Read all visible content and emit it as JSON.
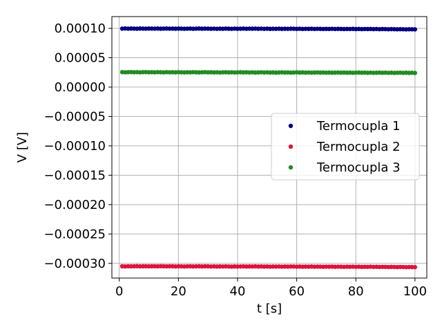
{
  "chart_data": {
    "type": "scatter",
    "xlabel": "t [s]",
    "ylabel": "V [V]",
    "xlim": [
      -2.5,
      104
    ],
    "ylim": [
      -0.000325,
      0.00012
    ],
    "xticks": [
      0,
      20,
      40,
      60,
      80,
      100
    ],
    "xtick_labels": [
      "0",
      "20",
      "40",
      "60",
      "80",
      "100"
    ],
    "yticks": [
      0.0001,
      5e-05,
      0.0,
      -5e-05,
      -0.0001,
      -0.00015,
      -0.0002,
      -0.00025,
      -0.0003
    ],
    "ytick_labels": [
      "0.00010",
      "0.00005",
      "0.00000",
      "−0.00005",
      "−0.00010",
      "−0.00015",
      "−0.00020",
      "−0.00025",
      "−0.00030"
    ],
    "grid": true,
    "legend_position": "center-right",
    "x": [
      1,
      2,
      3,
      4,
      5,
      6,
      7,
      8,
      9,
      10,
      11,
      12,
      13,
      14,
      15,
      16,
      17,
      18,
      19,
      20,
      21,
      22,
      23,
      24,
      25,
      26,
      27,
      28,
      29,
      30,
      31,
      32,
      33,
      34,
      35,
      36,
      37,
      38,
      39,
      40,
      41,
      42,
      43,
      44,
      45,
      46,
      47,
      48,
      49,
      50,
      51,
      52,
      53,
      54,
      55,
      56,
      57,
      58,
      59,
      60,
      61,
      62,
      63,
      64,
      65,
      66,
      67,
      68,
      69,
      70,
      71,
      72,
      73,
      74,
      75,
      76,
      77,
      78,
      79,
      80,
      81,
      82,
      83,
      84,
      85,
      86,
      87,
      88,
      89,
      90,
      91,
      92,
      93,
      94,
      95,
      96,
      97,
      98,
      99,
      100
    ],
    "series": [
      {
        "name": "Termocupla 1",
        "color": "#00007f",
        "values": [
          9.95e-05,
          9.98e-05,
          9.95e-05,
          9.97e-05,
          9.96e-05,
          9.94e-05,
          9.97e-05,
          9.96e-05,
          9.95e-05,
          9.97e-05,
          9.96e-05,
          9.95e-05,
          9.97e-05,
          9.94e-05,
          9.96e-05,
          9.97e-05,
          9.95e-05,
          9.96e-05,
          9.94e-05,
          9.96e-05,
          9.95e-05,
          9.93e-05,
          9.95e-05,
          9.96e-05,
          9.93e-05,
          9.95e-05,
          9.97e-05,
          9.94e-05,
          9.96e-05,
          9.95e-05,
          9.93e-05,
          9.95e-05,
          9.92e-05,
          9.94e-05,
          9.93e-05,
          9.96e-05,
          9.94e-05,
          9.92e-05,
          9.95e-05,
          9.93e-05,
          9.94e-05,
          9.96e-05,
          9.93e-05,
          9.95e-05,
          9.94e-05,
          9.96e-05,
          9.93e-05,
          9.95e-05,
          9.92e-05,
          9.94e-05,
          9.91e-05,
          9.93e-05,
          9.92e-05,
          9.94e-05,
          9.91e-05,
          9.93e-05,
          9.92e-05,
          9.94e-05,
          9.93e-05,
          9.91e-05,
          9.93e-05,
          9.9e-05,
          9.92e-05,
          9.91e-05,
          9.93e-05,
          9.9e-05,
          9.92e-05,
          9.91e-05,
          9.89e-05,
          9.91e-05,
          9.9e-05,
          9.92e-05,
          9.89e-05,
          9.91e-05,
          9.9e-05,
          9.88e-05,
          9.9e-05,
          9.89e-05,
          9.91e-05,
          9.88e-05,
          9.9e-05,
          9.87e-05,
          9.89e-05,
          9.88e-05,
          9.9e-05,
          9.87e-05,
          9.89e-05,
          9.86e-05,
          9.88e-05,
          9.87e-05,
          9.85e-05,
          9.87e-05,
          9.86e-05,
          9.84e-05,
          9.86e-05,
          9.85e-05,
          9.83e-05,
          9.85e-05,
          9.84e-05,
          9.83e-05
        ]
      },
      {
        "name": "Termocupla 2",
        "color": "#dc143c",
        "values": [
          -0.000305,
          -0.0003052,
          -0.0003049,
          -0.0003051,
          -0.000305,
          -0.0003048,
          -0.0003051,
          -0.000305,
          -0.0003049,
          -0.0003051,
          -0.000305,
          -0.0003049,
          -0.0003051,
          -0.0003048,
          -0.000305,
          -0.0003051,
          -0.0003049,
          -0.000305,
          -0.0003052,
          -0.000305,
          -0.0003051,
          -0.0003053,
          -0.0003051,
          -0.000305,
          -0.0003052,
          -0.0003051,
          -0.0003049,
          -0.0003052,
          -0.000305,
          -0.0003051,
          -0.0003053,
          -0.0003051,
          -0.0003054,
          -0.0003052,
          -0.0003053,
          -0.0003051,
          -0.0003053,
          -0.0003055,
          -0.0003052,
          -0.0003054,
          -0.0003053,
          -0.0003051,
          -0.0003054,
          -0.0003052,
          -0.0003053,
          -0.0003051,
          -0.0003054,
          -0.0003052,
          -0.0003055,
          -0.0003053,
          -0.0003056,
          -0.0003054,
          -0.0003055,
          -0.0003053,
          -0.0003056,
          -0.0003054,
          -0.0003055,
          -0.0003053,
          -0.0003054,
          -0.0003056,
          -0.0003054,
          -0.0003057,
          -0.0003055,
          -0.0003056,
          -0.0003054,
          -0.0003057,
          -0.0003055,
          -0.0003056,
          -0.0003058,
          -0.0003056,
          -0.0003057,
          -0.0003055,
          -0.0003058,
          -0.0003056,
          -0.0003057,
          -0.0003059,
          -0.0003057,
          -0.0003058,
          -0.0003056,
          -0.0003059,
          -0.0003057,
          -0.000306,
          -0.0003058,
          -0.0003059,
          -0.0003057,
          -0.000306,
          -0.0003058,
          -0.0003061,
          -0.0003059,
          -0.000306,
          -0.0003062,
          -0.000306,
          -0.0003061,
          -0.0003063,
          -0.0003061,
          -0.0003062,
          -0.0003064,
          -0.0003062,
          -0.0003063,
          -0.0003064
        ]
      },
      {
        "name": "Termocupla 3",
        "color": "#228b22",
        "values": [
          2.55e-05,
          2.52e-05,
          2.54e-05,
          2.56e-05,
          2.53e-05,
          2.55e-05,
          2.52e-05,
          2.54e-05,
          2.56e-05,
          2.53e-05,
          2.54e-05,
          2.52e-05,
          2.55e-05,
          2.53e-05,
          2.51e-05,
          2.54e-05,
          2.52e-05,
          2.53e-05,
          2.51e-05,
          2.54e-05,
          2.52e-05,
          2.5e-05,
          2.53e-05,
          2.51e-05,
          2.54e-05,
          2.52e-05,
          2.5e-05,
          2.52e-05,
          2.54e-05,
          2.51e-05,
          2.53e-05,
          2.5e-05,
          2.52e-05,
          2.49e-05,
          2.51e-05,
          2.53e-05,
          2.5e-05,
          2.52e-05,
          2.49e-05,
          2.51e-05,
          2.53e-05,
          2.5e-05,
          2.52e-05,
          2.49e-05,
          2.51e-05,
          2.48e-05,
          2.5e-05,
          2.52e-05,
          2.49e-05,
          2.51e-05,
          2.48e-05,
          2.5e-05,
          2.47e-05,
          2.49e-05,
          2.51e-05,
          2.48e-05,
          2.5e-05,
          2.47e-05,
          2.49e-05,
          2.51e-05,
          2.48e-05,
          2.5e-05,
          2.47e-05,
          2.49e-05,
          2.46e-05,
          2.48e-05,
          2.5e-05,
          2.47e-05,
          2.49e-05,
          2.46e-05,
          2.48e-05,
          2.45e-05,
          2.47e-05,
          2.49e-05,
          2.46e-05,
          2.48e-05,
          2.45e-05,
          2.47e-05,
          2.44e-05,
          2.46e-05,
          2.48e-05,
          2.45e-05,
          2.47e-05,
          2.44e-05,
          2.46e-05,
          2.43e-05,
          2.45e-05,
          2.47e-05,
          2.44e-05,
          2.46e-05,
          2.43e-05,
          2.45e-05,
          2.42e-05,
          2.44e-05,
          2.46e-05,
          2.43e-05,
          2.45e-05,
          2.42e-05,
          2.44e-05,
          2.41e-05
        ]
      }
    ]
  }
}
